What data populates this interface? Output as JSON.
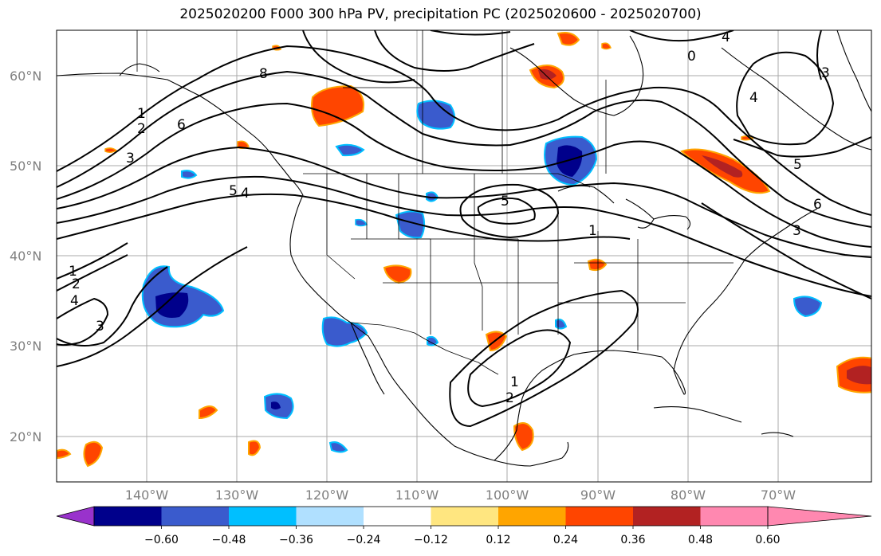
{
  "title": "2025020200 F000 300 hPa PV, precipitation PC (2025020600 - 2025020700)",
  "latitude_labels": [
    "60°N",
    "50°N",
    "40°N",
    "30°N",
    "20°N"
  ],
  "longitude_labels": [
    "140°W",
    "130°W",
    "120°W",
    "110°W",
    "100°W",
    "90°W",
    "80°W",
    "70°W"
  ],
  "pv_contour_labels": [
    "8",
    "1",
    "2",
    "6",
    "3",
    "5",
    "4",
    "5",
    "1",
    "3",
    "1",
    "2",
    "4",
    "3",
    "1",
    "2",
    "4",
    "3",
    "6",
    "5",
    "0",
    "4"
  ],
  "colorbar": {
    "tick_labels": [
      "−0.60",
      "−0.48",
      "−0.36",
      "−0.24",
      "−0.12",
      "0.12",
      "0.24",
      "0.36",
      "0.48",
      "0.60"
    ],
    "colors": [
      "#9932cc",
      "#00008b",
      "#3a5bcd",
      "#00bfff",
      "#b0e0ff",
      "#ffffff",
      "#ffe680",
      "#ffa500",
      "#ff4500",
      "#b22222",
      "#ff88b0"
    ]
  }
}
